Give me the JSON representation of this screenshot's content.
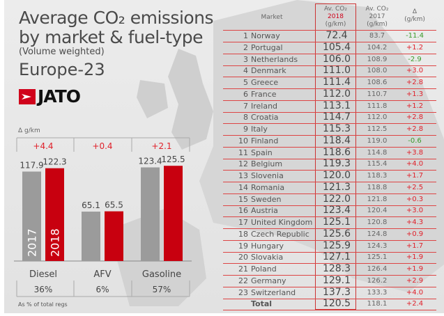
{
  "title_line1": "Average CO₂ emissions",
  "title_line2": "by market & fuel-type",
  "subtitle": "(Volume weighted)",
  "region": "Europe-23",
  "logo_text": "JATO",
  "colors": {
    "y2017": "#9b9b9b",
    "y2018": "#c8000f",
    "negative": "#3a9a2a",
    "positive": "#e0202a"
  },
  "chart_data": {
    "type": "bar",
    "categories": [
      "Diesel",
      "AFV",
      "Gasoline"
    ],
    "series": [
      {
        "name": "2017",
        "values": [
          117.9,
          65.1,
          123.4
        ]
      },
      {
        "name": "2018",
        "values": [
          122.3,
          65.5,
          125.5
        ]
      }
    ],
    "delta_label": "Δ g/km",
    "deltas": [
      "+4.4",
      "+0.4",
      "+2.1"
    ],
    "shares": [
      "36%",
      "6%",
      "57%"
    ],
    "share_label": "As % of total regs",
    "ylim": [
      0,
      130
    ]
  },
  "table": {
    "headers": {
      "market": "Market",
      "y2018_l1": "Av. CO₂",
      "y2018_l2": "2018",
      "y2018_l3": "(g/km)",
      "y2017_l1": "Av. CO₂",
      "y2017_l2": "2017",
      "y2017_l3": "(g/km)",
      "delta_l1": "Δ",
      "delta_l2": "(g/km)"
    },
    "rows": [
      {
        "rank": "1",
        "market": "Norway",
        "v2018": "72.4",
        "v2017": "83.7",
        "delta": "-11.4"
      },
      {
        "rank": "2",
        "market": "Portugal",
        "v2018": "105.4",
        "v2017": "104.2",
        "delta": "+1.2"
      },
      {
        "rank": "3",
        "market": "Netherlands",
        "v2018": "106.0",
        "v2017": "108.9",
        "delta": "-2.9"
      },
      {
        "rank": "4",
        "market": "Denmark",
        "v2018": "111.0",
        "v2017": "108.0",
        "delta": "+3.0"
      },
      {
        "rank": "5",
        "market": "Greece",
        "v2018": "111.4",
        "v2017": "108.6",
        "delta": "+2.8"
      },
      {
        "rank": "6",
        "market": "France",
        "v2018": "112.0",
        "v2017": "110.7",
        "delta": "+1.3"
      },
      {
        "rank": "7",
        "market": "Ireland",
        "v2018": "113.1",
        "v2017": "111.8",
        "delta": "+1.2"
      },
      {
        "rank": "8",
        "market": "Croatia",
        "v2018": "114.7",
        "v2017": "112.0",
        "delta": "+2.8"
      },
      {
        "rank": "9",
        "market": "Italy",
        "v2018": "115.3",
        "v2017": "112.5",
        "delta": "+2.8"
      },
      {
        "rank": "10",
        "market": "Finland",
        "v2018": "118.4",
        "v2017": "119.0",
        "delta": "-0.6"
      },
      {
        "rank": "11",
        "market": "Spain",
        "v2018": "118.6",
        "v2017": "114.8",
        "delta": "+3.8"
      },
      {
        "rank": "12",
        "market": "Belgium",
        "v2018": "119.3",
        "v2017": "115.4",
        "delta": "+4.0"
      },
      {
        "rank": "13",
        "market": "Slovenia",
        "v2018": "120.0",
        "v2017": "118.3",
        "delta": "+1.7"
      },
      {
        "rank": "14",
        "market": "Romania",
        "v2018": "121.3",
        "v2017": "118.8",
        "delta": "+2.5"
      },
      {
        "rank": "15",
        "market": "Sweden",
        "v2018": "122.0",
        "v2017": "121.8",
        "delta": "+0.3"
      },
      {
        "rank": "16",
        "market": "Austria",
        "v2018": "123.4",
        "v2017": "120.4",
        "delta": "+3.0"
      },
      {
        "rank": "17",
        "market": "United Kingdom",
        "v2018": "125.1",
        "v2017": "120.8",
        "delta": "+4.3"
      },
      {
        "rank": "18",
        "market": "Czech Republic",
        "v2018": "125.6",
        "v2017": "124.8",
        "delta": "+0.9"
      },
      {
        "rank": "19",
        "market": "Hungary",
        "v2018": "125.9",
        "v2017": "124.3",
        "delta": "+1.7"
      },
      {
        "rank": "20",
        "market": "Slovakia",
        "v2018": "127.1",
        "v2017": "125.1",
        "delta": "+1.9"
      },
      {
        "rank": "21",
        "market": "Poland",
        "v2018": "128.3",
        "v2017": "126.4",
        "delta": "+1.9"
      },
      {
        "rank": "22",
        "market": "Germany",
        "v2018": "129.1",
        "v2017": "126.2",
        "delta": "+2.9"
      },
      {
        "rank": "23",
        "market": "Switzerland",
        "v2018": "137.3",
        "v2017": "133.3",
        "delta": "+4.0"
      },
      {
        "rank": "",
        "market": "Total",
        "v2018": "120.5",
        "v2017": "118.1",
        "delta": "+2.4"
      }
    ]
  }
}
